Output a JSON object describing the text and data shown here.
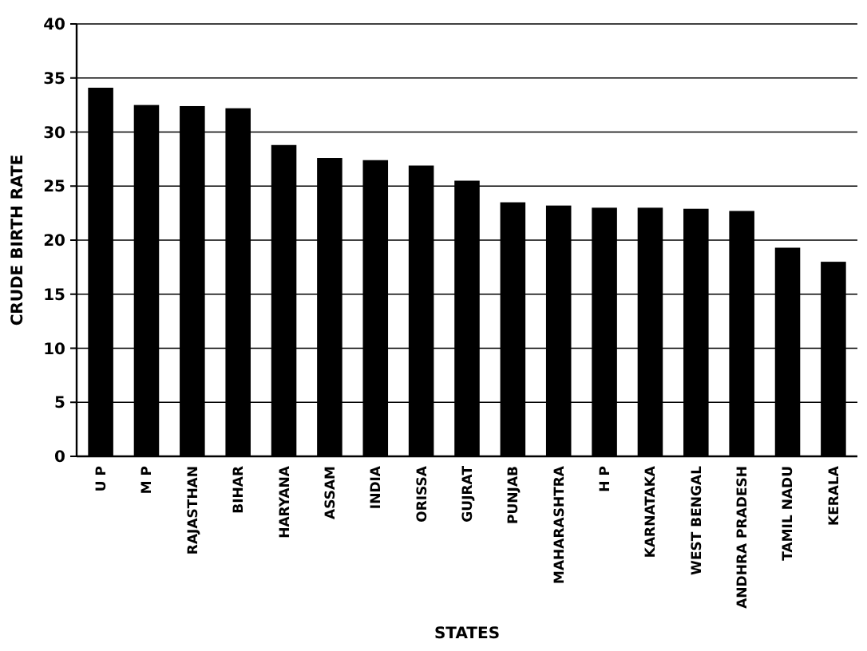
{
  "chart_data": {
    "type": "bar",
    "xlabel": "STATES",
    "ylabel": "CRUDE BIRTH RATE",
    "categories": [
      "U P",
      "M P",
      "RAJASTHAN",
      "BIHAR",
      "HARYANA",
      "ASSAM",
      "INDIA",
      "ORISSA",
      "GUJRAT",
      "PUNJAB",
      "MAHARASHTRA",
      "H P",
      "KARNATAKA",
      "WEST BENGAL",
      "ANDHRA PRADESH",
      "TAMIL NADU",
      "KERALA"
    ],
    "values": [
      34.1,
      32.5,
      32.4,
      32.2,
      28.8,
      27.6,
      27.4,
      26.9,
      25.5,
      23.5,
      23.2,
      23.0,
      23.0,
      22.9,
      22.7,
      19.3,
      18.0
    ],
    "color": "#000000",
    "ylim": [
      0,
      40
    ],
    "yticks": [
      0,
      5,
      10,
      15,
      20,
      25,
      30,
      35,
      40
    ],
    "grid": "y"
  }
}
